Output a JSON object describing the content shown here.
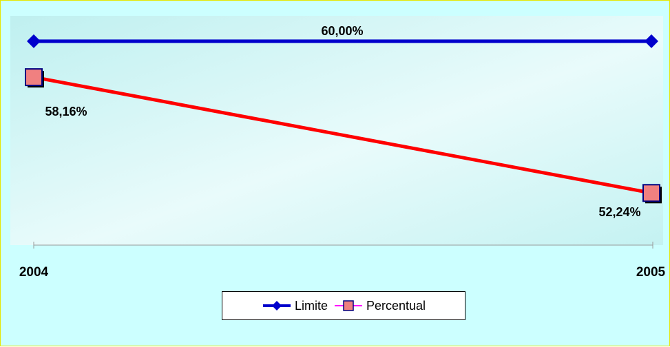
{
  "chart_data": {
    "type": "line",
    "categories": [
      "2004",
      "2005"
    ],
    "ylim": [
      45,
      62
    ],
    "grid": false,
    "legend_position": "bottom",
    "series": [
      {
        "name": "Limite",
        "values": [
          60.0,
          60.0
        ],
        "color": "#0000cc",
        "marker": "diamond",
        "data_labels": [
          "60,00%",
          ""
        ]
      },
      {
        "name": "Percentual",
        "values": [
          58.16,
          52.24
        ],
        "color": "#ff0000",
        "marker_fill": "#f08080",
        "marker_border": "#000080",
        "marker": "square",
        "data_labels": [
          "58,16%",
          "52,24%"
        ]
      }
    ]
  }
}
